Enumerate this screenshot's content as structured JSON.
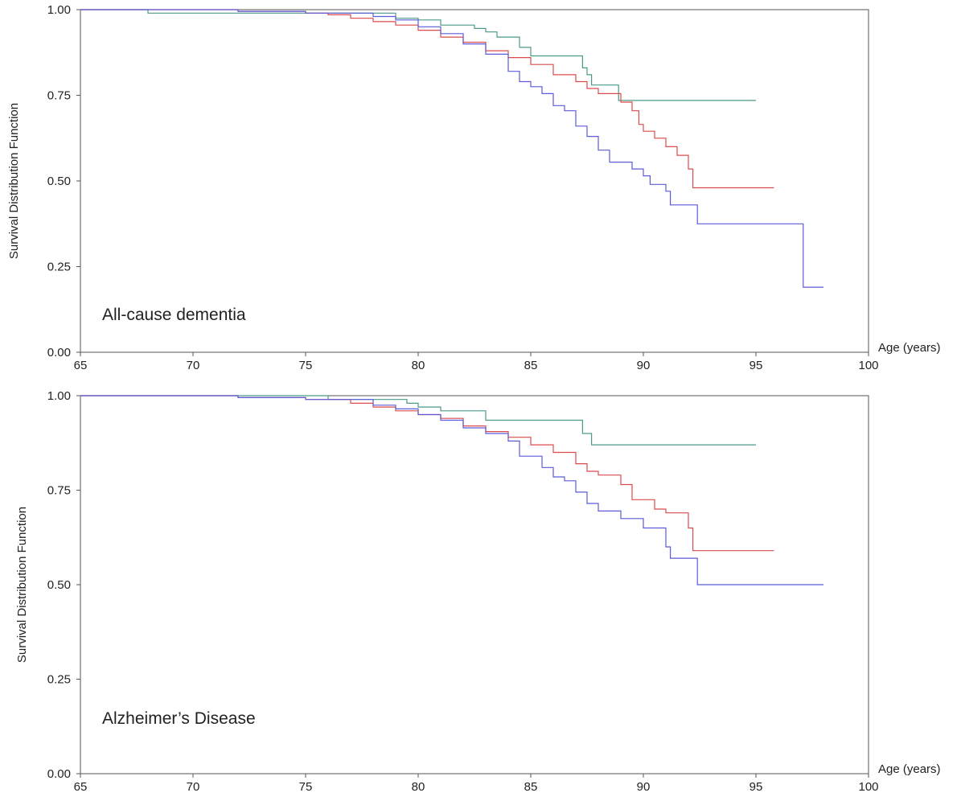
{
  "chart_data": [
    {
      "type": "line",
      "step": true,
      "annotation": "All-cause dementia",
      "xlabel": "Age (years)",
      "ylabel": "Survival Distribution Function",
      "xlim": [
        65,
        100
      ],
      "ylim": [
        0,
        1
      ],
      "xticks": [
        "65",
        "70",
        "75",
        "80",
        "85",
        "90",
        "95",
        "100"
      ],
      "yticks": [
        "0.00",
        "0.25",
        "0.50",
        "0.75",
        "1.00"
      ],
      "grid": false,
      "series": [
        {
          "color": "#4a9a8a",
          "points": [
            [
              65,
              1.0
            ],
            [
              68,
              0.99
            ],
            [
              74,
              0.99
            ],
            [
              79,
              0.975
            ],
            [
              80,
              0.97
            ],
            [
              81,
              0.955
            ],
            [
              82,
              0.955
            ],
            [
              82.5,
              0.945
            ],
            [
              83,
              0.935
            ],
            [
              83.5,
              0.92
            ],
            [
              84.5,
              0.89
            ],
            [
              85,
              0.865
            ],
            [
              87.2,
              0.865
            ],
            [
              87.3,
              0.83
            ],
            [
              87.5,
              0.81
            ],
            [
              87.7,
              0.78
            ],
            [
              88.9,
              0.735
            ],
            [
              95,
              0.735
            ]
          ]
        },
        {
          "color": "#dc4b4b",
          "points": [
            [
              65,
              1.0
            ],
            [
              72,
              0.995
            ],
            [
              75,
              0.99
            ],
            [
              76,
              0.985
            ],
            [
              77,
              0.975
            ],
            [
              78,
              0.965
            ],
            [
              79,
              0.955
            ],
            [
              80,
              0.94
            ],
            [
              81,
              0.92
            ],
            [
              82,
              0.905
            ],
            [
              83,
              0.88
            ],
            [
              84,
              0.86
            ],
            [
              85,
              0.84
            ],
            [
              86,
              0.81
            ],
            [
              87,
              0.79
            ],
            [
              87.5,
              0.77
            ],
            [
              88,
              0.755
            ],
            [
              89,
              0.73
            ],
            [
              89.5,
              0.705
            ],
            [
              89.8,
              0.665
            ],
            [
              90,
              0.645
            ],
            [
              90.5,
              0.625
            ],
            [
              91,
              0.6
            ],
            [
              91.5,
              0.575
            ],
            [
              92,
              0.535
            ],
            [
              92.2,
              0.48
            ],
            [
              95.8,
              0.48
            ]
          ]
        },
        {
          "color": "#5b5bdc",
          "points": [
            [
              65,
              1.0
            ],
            [
              72,
              0.995
            ],
            [
              75,
              0.99
            ],
            [
              78,
              0.98
            ],
            [
              79,
              0.97
            ],
            [
              80,
              0.95
            ],
            [
              81,
              0.93
            ],
            [
              82,
              0.9
            ],
            [
              83,
              0.87
            ],
            [
              84,
              0.82
            ],
            [
              84.5,
              0.79
            ],
            [
              85,
              0.775
            ],
            [
              85.5,
              0.755
            ],
            [
              86,
              0.72
            ],
            [
              86.5,
              0.705
            ],
            [
              87,
              0.66
            ],
            [
              87.5,
              0.63
            ],
            [
              88,
              0.59
            ],
            [
              88.5,
              0.555
            ],
            [
              89,
              0.555
            ],
            [
              89.5,
              0.535
            ],
            [
              90,
              0.515
            ],
            [
              90.3,
              0.49
            ],
            [
              91,
              0.47
            ],
            [
              91.2,
              0.43
            ],
            [
              92.4,
              0.375
            ],
            [
              97.1,
              0.375
            ],
            [
              97.1,
              0.19
            ],
            [
              98,
              0.19
            ]
          ]
        }
      ]
    },
    {
      "type": "line",
      "step": true,
      "annotation": "Alzheimer’s Disease",
      "xlabel": "Age (years)",
      "ylabel": "Survival Distribution Function",
      "xlim": [
        65,
        100
      ],
      "ylim": [
        0,
        1
      ],
      "xticks": [
        "65",
        "70",
        "75",
        "80",
        "85",
        "90",
        "95",
        "100"
      ],
      "yticks": [
        "0.00",
        "0.25",
        "0.50",
        "0.75",
        "1.00"
      ],
      "grid": false,
      "series": [
        {
          "color": "#4a9a8a",
          "points": [
            [
              65,
              1.0
            ],
            [
              76,
              0.99
            ],
            [
              79.5,
              0.98
            ],
            [
              80,
              0.97
            ],
            [
              81,
              0.96
            ],
            [
              83,
              0.935
            ],
            [
              87.2,
              0.935
            ],
            [
              87.3,
              0.9
            ],
            [
              87.7,
              0.87
            ],
            [
              95,
              0.87
            ]
          ]
        },
        {
          "color": "#dc4b4b",
          "points": [
            [
              65,
              1.0
            ],
            [
              72,
              0.995
            ],
            [
              75,
              0.99
            ],
            [
              77,
              0.98
            ],
            [
              78,
              0.97
            ],
            [
              79,
              0.96
            ],
            [
              80,
              0.95
            ],
            [
              81,
              0.94
            ],
            [
              82,
              0.92
            ],
            [
              83,
              0.905
            ],
            [
              84,
              0.89
            ],
            [
              85,
              0.87
            ],
            [
              86,
              0.85
            ],
            [
              87,
              0.82
            ],
            [
              87.5,
              0.8
            ],
            [
              88,
              0.79
            ],
            [
              89,
              0.765
            ],
            [
              89.5,
              0.725
            ],
            [
              90,
              0.725
            ],
            [
              90.5,
              0.7
            ],
            [
              91,
              0.69
            ],
            [
              92,
              0.65
            ],
            [
              92.2,
              0.59
            ],
            [
              95.8,
              0.59
            ]
          ]
        },
        {
          "color": "#5b5bdc",
          "points": [
            [
              65,
              1.0
            ],
            [
              72,
              0.995
            ],
            [
              75,
              0.99
            ],
            [
              78,
              0.975
            ],
            [
              79,
              0.965
            ],
            [
              80,
              0.95
            ],
            [
              81,
              0.935
            ],
            [
              82,
              0.915
            ],
            [
              83,
              0.9
            ],
            [
              84,
              0.88
            ],
            [
              84.5,
              0.84
            ],
            [
              85,
              0.84
            ],
            [
              85.5,
              0.81
            ],
            [
              86,
              0.785
            ],
            [
              86.5,
              0.775
            ],
            [
              87,
              0.745
            ],
            [
              87.5,
              0.715
            ],
            [
              88,
              0.695
            ],
            [
              89,
              0.675
            ],
            [
              90,
              0.65
            ],
            [
              91,
              0.6
            ],
            [
              91.2,
              0.57
            ],
            [
              92.4,
              0.5
            ],
            [
              98,
              0.5
            ]
          ]
        }
      ]
    }
  ]
}
